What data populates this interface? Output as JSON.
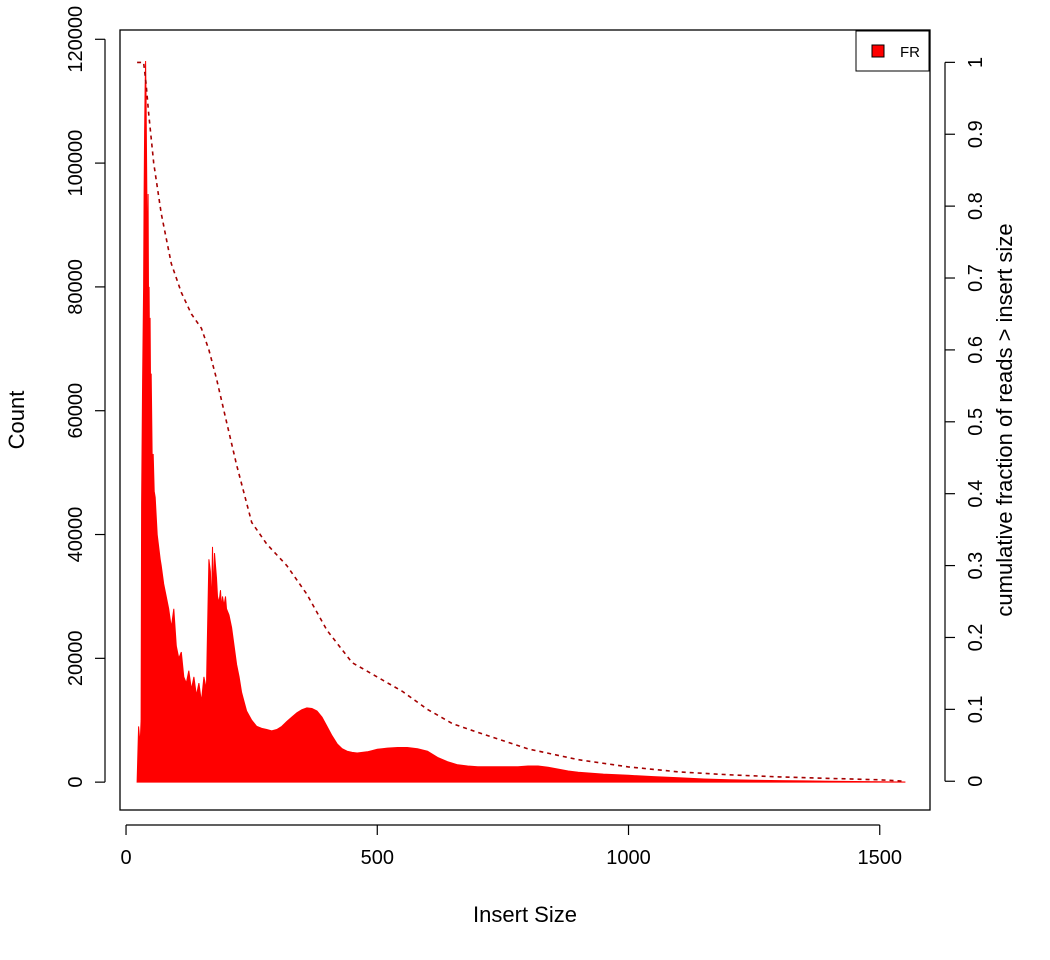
{
  "chart_data": {
    "type": "area",
    "xlabel": "Insert Size",
    "ylabel": "Count",
    "y2label": "cumulative fraction of reads > insert size",
    "xlim": [
      -12,
      1600
    ],
    "ylim": [
      -4500,
      121500
    ],
    "y2lim": [
      -0.04,
      1.045
    ],
    "x_ticks": [
      0,
      500,
      1000,
      1500
    ],
    "y_ticks": [
      0,
      20000,
      40000,
      60000,
      80000,
      100000,
      120000
    ],
    "y2_ticks": [
      0,
      0.1,
      0.2,
      0.3,
      0.4,
      0.5,
      0.6,
      0.7,
      0.8,
      0.9,
      1
    ],
    "legend": {
      "position": "top-right",
      "entries": [
        "FR"
      ]
    },
    "colors": {
      "histogram": "#ff0000",
      "cumulative": "#a50000"
    },
    "series": [
      {
        "name": "FR",
        "kind": "histogram",
        "x": [
          22,
          25,
          28,
          30,
          31,
          33,
          35,
          36,
          37,
          38,
          39,
          40,
          41,
          42,
          43,
          44,
          45,
          46,
          47,
          48,
          49,
          50,
          52,
          54,
          56,
          58,
          60,
          62,
          65,
          68,
          70,
          75,
          80,
          85,
          90,
          95,
          100,
          105,
          110,
          115,
          120,
          125,
          130,
          135,
          140,
          145,
          150,
          155,
          160,
          165,
          168,
          170,
          172,
          174,
          176,
          178,
          180,
          182,
          185,
          188,
          190,
          192,
          195,
          198,
          200,
          205,
          210,
          215,
          220,
          225,
          230,
          235,
          240,
          250,
          260,
          270,
          280,
          290,
          300,
          310,
          320,
          330,
          340,
          350,
          360,
          370,
          380,
          390,
          400,
          410,
          420,
          430,
          440,
          450,
          460,
          470,
          480,
          490,
          500,
          520,
          540,
          560,
          580,
          600,
          620,
          640,
          660,
          680,
          700,
          720,
          740,
          760,
          780,
          800,
          820,
          840,
          860,
          880,
          900,
          950,
          1000,
          1050,
          1100,
          1150,
          1200,
          1250,
          1300,
          1350,
          1400,
          1450,
          1500,
          1550
        ],
        "y": [
          0,
          9000,
          6000,
          10000,
          45000,
          65000,
          80000,
          95000,
          105000,
          112000,
          116500,
          110000,
          100000,
          90000,
          82000,
          95000,
          75000,
          80000,
          68000,
          75000,
          60000,
          66000,
          52000,
          53000,
          47000,
          46000,
          43000,
          40000,
          38000,
          36000,
          35000,
          32000,
          30000,
          28000,
          25000,
          28000,
          22000,
          20000,
          21000,
          17000,
          16000,
          18000,
          15000,
          17000,
          14000,
          16000,
          13000,
          17000,
          15000,
          36000,
          34000,
          28000,
          38000,
          30000,
          37000,
          35000,
          33000,
          30000,
          29000,
          31000,
          28000,
          30000,
          28500,
          30000,
          28000,
          27000,
          25000,
          22000,
          19000,
          17000,
          14500,
          13000,
          11500,
          10000,
          9000,
          8700,
          8500,
          8300,
          8500,
          9000,
          9800,
          10500,
          11200,
          11700,
          12000,
          11900,
          11500,
          10500,
          9000,
          7500,
          6200,
          5400,
          5000,
          4800,
          4700,
          4800,
          4900,
          5100,
          5300,
          5500,
          5600,
          5600,
          5400,
          5000,
          4000,
          3300,
          2800,
          2600,
          2500,
          2500,
          2500,
          2500,
          2500,
          2600,
          2600,
          2400,
          2100,
          1800,
          1600,
          1300,
          1100,
          900,
          700,
          500,
          400,
          300,
          250,
          200,
          150,
          100,
          50,
          30
        ]
      },
      {
        "name": "cumulative fraction of reads > insert size",
        "kind": "cumulative",
        "x": [
          22,
          35,
          40,
          45,
          55,
          70,
          90,
          110,
          130,
          150,
          165,
          180,
          200,
          220,
          250,
          280,
          320,
          360,
          400,
          450,
          500,
          550,
          600,
          650,
          700,
          800,
          900,
          1000,
          1100,
          1200,
          1300,
          1400,
          1500,
          1550
        ],
        "y": [
          1.0,
          1.0,
          0.97,
          0.93,
          0.86,
          0.79,
          0.72,
          0.68,
          0.65,
          0.63,
          0.6,
          0.56,
          0.5,
          0.44,
          0.36,
          0.33,
          0.3,
          0.26,
          0.21,
          0.165,
          0.145,
          0.125,
          0.1,
          0.08,
          0.068,
          0.045,
          0.03,
          0.02,
          0.013,
          0.009,
          0.006,
          0.004,
          0.002,
          0.0
        ]
      }
    ]
  }
}
